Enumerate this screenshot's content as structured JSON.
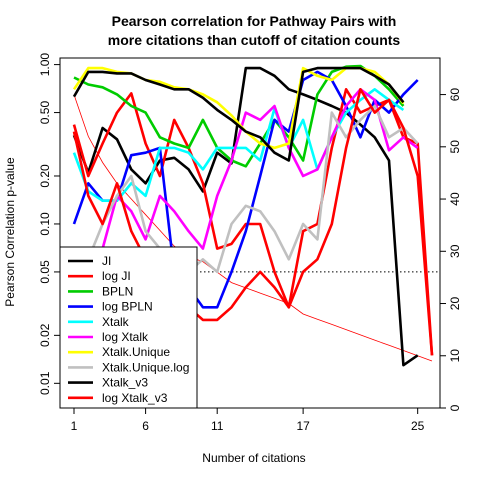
{
  "chart_data": {
    "type": "line",
    "title_lines": [
      "Pearson correlation for Pathway Pairs with",
      "more citations than cutoff of citation counts"
    ],
    "xlabel": "Number of citations",
    "ylabel": "Pearson Correlation p-value",
    "x_ticks": [
      1,
      6,
      11,
      17,
      25
    ],
    "x_range": [
      1,
      26
    ],
    "y_scale": "log",
    "y_range": [
      0.007,
      1.1
    ],
    "y_ticks": [
      {
        "value": 0.01,
        "label": "0.01"
      },
      {
        "value": 0.02,
        "label": "0.02"
      },
      {
        "value": 0.05,
        "label": "0.05"
      },
      {
        "value": 0.1,
        "label": "0.10"
      },
      {
        "value": 0.2,
        "label": "0.20"
      },
      {
        "value": 0.5,
        "label": "0.50"
      },
      {
        "value": 1.0,
        "label": "1.00"
      }
    ],
    "y2_range": [
      0,
      67
    ],
    "y2_ticks": [
      0,
      10,
      20,
      30,
      40,
      50,
      60
    ],
    "reference_line": {
      "y": 0.05,
      "style": "dotted"
    },
    "x": [
      1,
      2,
      3,
      4,
      5,
      6,
      7,
      8,
      9,
      10,
      11,
      12,
      13,
      14,
      15,
      16,
      17,
      18,
      19,
      20,
      21,
      22,
      23,
      24,
      25,
      26
    ],
    "series": [
      {
        "name": "JI",
        "color": "#000000",
        "values": [
          0.36,
          0.21,
          0.4,
          0.34,
          0.22,
          0.18,
          0.25,
          0.26,
          0.22,
          0.16,
          0.28,
          0.24,
          0.95,
          0.95,
          0.85,
          0.7,
          0.65,
          0.6,
          0.55,
          0.5,
          0.42,
          0.35,
          0.25,
          0.013,
          0.015,
          null
        ]
      },
      {
        "name": "log JI",
        "color": "#ff0000",
        "values": [
          0.42,
          0.2,
          0.32,
          0.5,
          0.66,
          0.32,
          0.2,
          0.45,
          0.3,
          0.18,
          0.07,
          0.075,
          0.1,
          0.1,
          0.05,
          0.03,
          0.09,
          0.1,
          0.3,
          0.7,
          0.5,
          0.55,
          0.6,
          0.35,
          0.32,
          0.015
        ]
      },
      {
        "name": "BPLN",
        "color": "#00cc00",
        "values": [
          0.83,
          0.75,
          0.72,
          0.65,
          0.55,
          0.5,
          0.35,
          0.32,
          0.3,
          0.45,
          0.3,
          0.25,
          0.23,
          0.32,
          0.45,
          0.35,
          0.25,
          0.65,
          0.9,
          0.97,
          0.98,
          0.85,
          0.7,
          0.55,
          null,
          null
        ]
      },
      {
        "name": "log BPLN",
        "color": "#0000ff",
        "values": [
          0.1,
          0.18,
          0.14,
          0.14,
          0.27,
          0.28,
          0.3,
          0.05,
          0.04,
          0.03,
          0.03,
          0.05,
          0.09,
          0.2,
          0.45,
          0.38,
          0.8,
          0.9,
          0.8,
          0.55,
          0.35,
          0.6,
          0.5,
          0.65,
          0.8,
          null
        ]
      },
      {
        "name": "Xtalk",
        "color": "#00ffff",
        "values": [
          0.28,
          0.16,
          0.14,
          0.14,
          0.18,
          0.15,
          0.3,
          0.3,
          0.28,
          0.22,
          0.3,
          0.3,
          0.3,
          0.25,
          0.53,
          0.3,
          0.45,
          0.22,
          0.35,
          0.5,
          0.6,
          0.7,
          0.6,
          0.52,
          null,
          null
        ]
      },
      {
        "name": "log Xtalk",
        "color": "#ff00ff",
        "values": [
          0.05,
          0.03,
          0.07,
          0.15,
          0.12,
          0.08,
          0.15,
          0.12,
          0.09,
          0.07,
          0.15,
          0.25,
          0.5,
          0.45,
          0.55,
          0.3,
          0.2,
          0.22,
          0.35,
          0.55,
          0.7,
          0.6,
          0.29,
          0.35,
          0.3,
          null
        ]
      },
      {
        "name": "Xtalk.Unique",
        "color": "#ffff00",
        "values": [
          0.7,
          0.95,
          0.95,
          0.9,
          0.88,
          0.8,
          0.78,
          0.72,
          0.7,
          0.65,
          0.58,
          0.48,
          0.38,
          0.32,
          0.3,
          0.32,
          0.95,
          0.85,
          0.8,
          0.95,
          0.95,
          0.9,
          0.75,
          0.57,
          null,
          null
        ]
      },
      {
        "name": "Xtalk.Unique.log",
        "color": "#c0c0c0",
        "values": [
          0.03,
          0.06,
          0.1,
          0.15,
          0.2,
          0.09,
          0.07,
          0.04,
          0.05,
          0.06,
          0.05,
          0.1,
          0.13,
          0.12,
          0.09,
          0.06,
          0.1,
          0.08,
          0.5,
          0.35,
          0.45,
          0.55,
          0.35,
          0.4,
          0.32,
          null
        ]
      },
      {
        "name": "Xtalk_v3",
        "color": "#000000",
        "values": [
          0.63,
          0.9,
          0.9,
          0.88,
          0.88,
          0.8,
          0.75,
          0.7,
          0.7,
          0.62,
          0.52,
          0.45,
          0.38,
          0.35,
          0.28,
          0.25,
          0.9,
          0.95,
          0.95,
          0.95,
          0.95,
          0.85,
          0.75,
          0.58,
          null,
          null
        ]
      },
      {
        "name": "log Xtalk_v3",
        "color": "#ff0000",
        "values": [
          0.38,
          0.15,
          0.1,
          0.18,
          0.09,
          0.06,
          0.04,
          0.05,
          0.03,
          0.025,
          0.025,
          0.03,
          0.04,
          0.05,
          0.04,
          0.03,
          0.05,
          0.06,
          0.1,
          0.3,
          0.7,
          0.5,
          0.6,
          0.4,
          0.2,
          0.015
        ]
      }
    ],
    "count_series": {
      "name": "",
      "color": "#ff0000",
      "x": [
        1,
        2,
        3,
        4,
        5,
        6,
        7,
        8,
        9,
        10,
        11,
        12,
        13,
        14,
        15,
        16,
        17,
        18,
        19,
        20,
        21,
        22,
        23,
        24,
        25,
        26
      ],
      "values": [
        60,
        52,
        47,
        43,
        40,
        37,
        34,
        31,
        29,
        28,
        26,
        24,
        23,
        22,
        21,
        20,
        18,
        17,
        16,
        15,
        14,
        13,
        12,
        11,
        10,
        9
      ]
    }
  }
}
